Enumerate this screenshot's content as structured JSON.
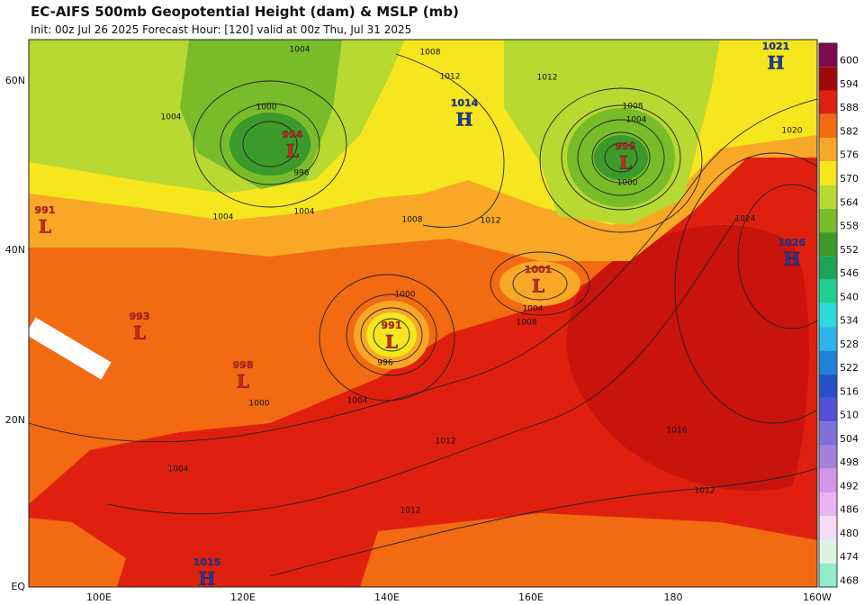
{
  "header": {
    "title": "EC-AIFS 500mb Geopotential Height (dam) & MSLP (mb)",
    "subtitle": "Init: 00z Jul 26 2025   Forecast Hour: [120]   valid at 00z Thu, Jul 31 2025"
  },
  "colorbar": {
    "levels": [
      600,
      594,
      588,
      582,
      576,
      570,
      564,
      558,
      552,
      546,
      540,
      534,
      528,
      522,
      516,
      510,
      504,
      498,
      492,
      486,
      480,
      474,
      468
    ],
    "colors": [
      "#7b0a4e",
      "#a00808",
      "#e0200e",
      "#f26a12",
      "#f8a826",
      "#f6e61e",
      "#b8d832",
      "#78bc2a",
      "#3c9a2a",
      "#1fa25a",
      "#1fcf92",
      "#2fd8da",
      "#2fb2ea",
      "#2082d8",
      "#2452c8",
      "#5252d2",
      "#8070da",
      "#a482dc",
      "#d494ea",
      "#eab4f2",
      "#f4dcf4",
      "#dcf4e4",
      "#92ecca"
    ]
  },
  "axes": {
    "lat_labels": [
      "60N",
      "40N",
      "20N",
      "EQ"
    ],
    "lon_labels": [
      "100E",
      "120E",
      "140E",
      "160E",
      "180",
      "160W"
    ]
  },
  "centers": [
    {
      "value": "994",
      "letter": "L"
    },
    {
      "value": "995",
      "letter": "L"
    },
    {
      "value": "1014",
      "letter": "H"
    },
    {
      "value": "1021",
      "letter": "H"
    },
    {
      "value": "991",
      "letter": "L"
    },
    {
      "value": "1001",
      "letter": "L"
    },
    {
      "value": "991",
      "letter": "L"
    },
    {
      "value": "993",
      "letter": "L"
    },
    {
      "value": "998",
      "letter": "L"
    },
    {
      "value": "1026",
      "letter": "H"
    },
    {
      "value": "1015",
      "letter": "H"
    }
  ],
  "contour_labels": [
    "1004",
    "1008",
    "1012",
    "1008",
    "1004",
    "1000",
    "1012",
    "1024",
    "1020",
    "1004",
    "1008",
    "1000",
    "996",
    "1004",
    "1000",
    "1012",
    "1016",
    "1012",
    "1012",
    "1004",
    "996",
    "1000",
    "1004",
    "1004",
    "1004",
    "1008",
    "1012"
  ]
}
